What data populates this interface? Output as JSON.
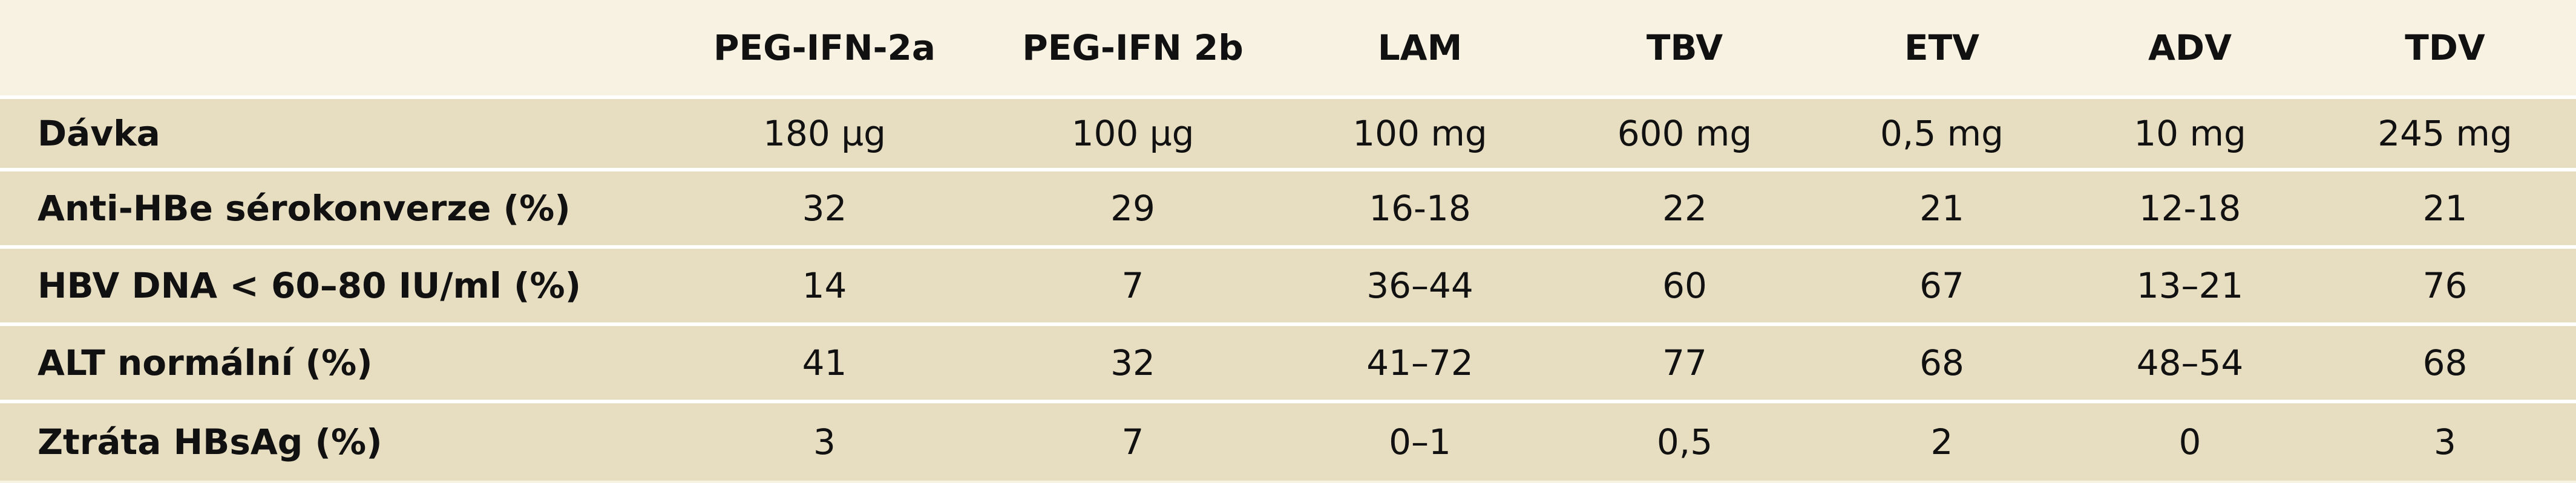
{
  "table": {
    "headers": [
      "",
      "PEG-IFN-2a",
      "PEG-IFN 2b",
      "LAM",
      "TBV",
      "ETV",
      "ADV",
      "TDV"
    ],
    "rows": [
      {
        "label": "Dávka",
        "values": [
          "180 µg",
          "100 µg",
          "100 mg",
          "600 mg",
          "0,5 mg",
          "10 mg",
          "245 mg"
        ]
      },
      {
        "label": "Anti-HBe sérokonverze (%)",
        "values": [
          "32",
          "29",
          "16-18",
          "22",
          "21",
          "12-18",
          "21"
        ]
      },
      {
        "label": "HBV DNA < 60–80 IU/ml (%)",
        "values": [
          "14",
          "7",
          "36–44",
          "60",
          "67",
          "13–21",
          "76"
        ]
      },
      {
        "label": "ALT normální (%)",
        "values": [
          "41",
          "32",
          "41–72",
          "77",
          "68",
          "48–54",
          "68"
        ]
      },
      {
        "label": "Ztráta HBsAg (%)",
        "values": [
          "3",
          "7",
          "0–1",
          "0,5",
          "2",
          "0",
          "3"
        ]
      }
    ]
  },
  "colors": {
    "background": "#f7f2e2",
    "shaded_row": "#e7ddc1",
    "separator": "#ffffff",
    "text": "#111111"
  }
}
